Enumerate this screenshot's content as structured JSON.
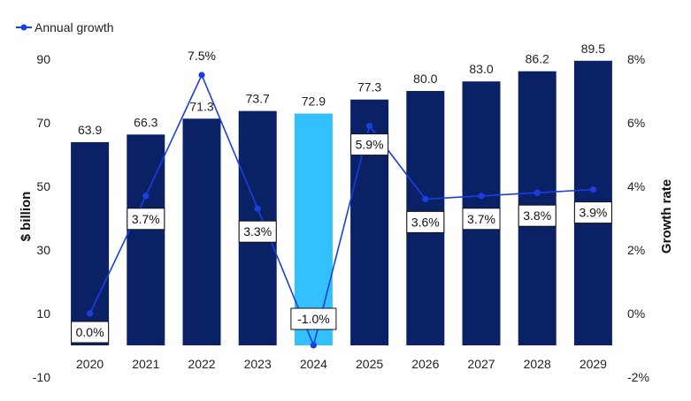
{
  "chart_data": {
    "type": "bar",
    "categories": [
      "2020",
      "2021",
      "2022",
      "2023",
      "2024",
      "2025",
      "2026",
      "2027",
      "2028",
      "2029"
    ],
    "series": [
      {
        "values": [
          63.9,
          66.3,
          71.3,
          73.7,
          72.9,
          77.3,
          80.0,
          83.0,
          86.2,
          89.5
        ]
      }
    ],
    "bar_value_labels": [
      "63.9",
      "66.3",
      "71.3",
      "73.7",
      "72.9",
      "77.3",
      "80.0",
      "83.0",
      "86.2",
      "89.5"
    ],
    "line_series": {
      "name": "Annual growth",
      "axis": "right",
      "values": [
        0.0,
        3.7,
        7.5,
        3.3,
        -1.0,
        5.9,
        3.6,
        3.7,
        3.8,
        3.9
      ],
      "labels": [
        "0.0%",
        "3.7%",
        "7.5%",
        "3.3%",
        "-1.0%",
        "5.9%",
        "3.6%",
        "3.7%",
        "3.8%",
        "3.9%"
      ]
    },
    "ylabel": "$ billion",
    "y2label": "Growth rate",
    "ylim": [
      -10,
      90
    ],
    "yticks": [
      90,
      70,
      50,
      30,
      10,
      -10
    ],
    "y2lim": [
      -2,
      8
    ],
    "y2ticks": [
      "8%",
      "6%",
      "4%",
      "2%",
      "0%",
      "-2%"
    ],
    "y2tick_values": [
      8,
      6,
      4,
      2,
      0,
      -2
    ],
    "highlight_category": "2024",
    "legend": {
      "position": "top-left",
      "entries": [
        "Annual growth"
      ]
    },
    "grid": false,
    "colors": {
      "bar": "#0b2166",
      "bar_highlight": "#33c0ff",
      "line": "#1a3fe0",
      "label_box_border": "#111111"
    }
  }
}
